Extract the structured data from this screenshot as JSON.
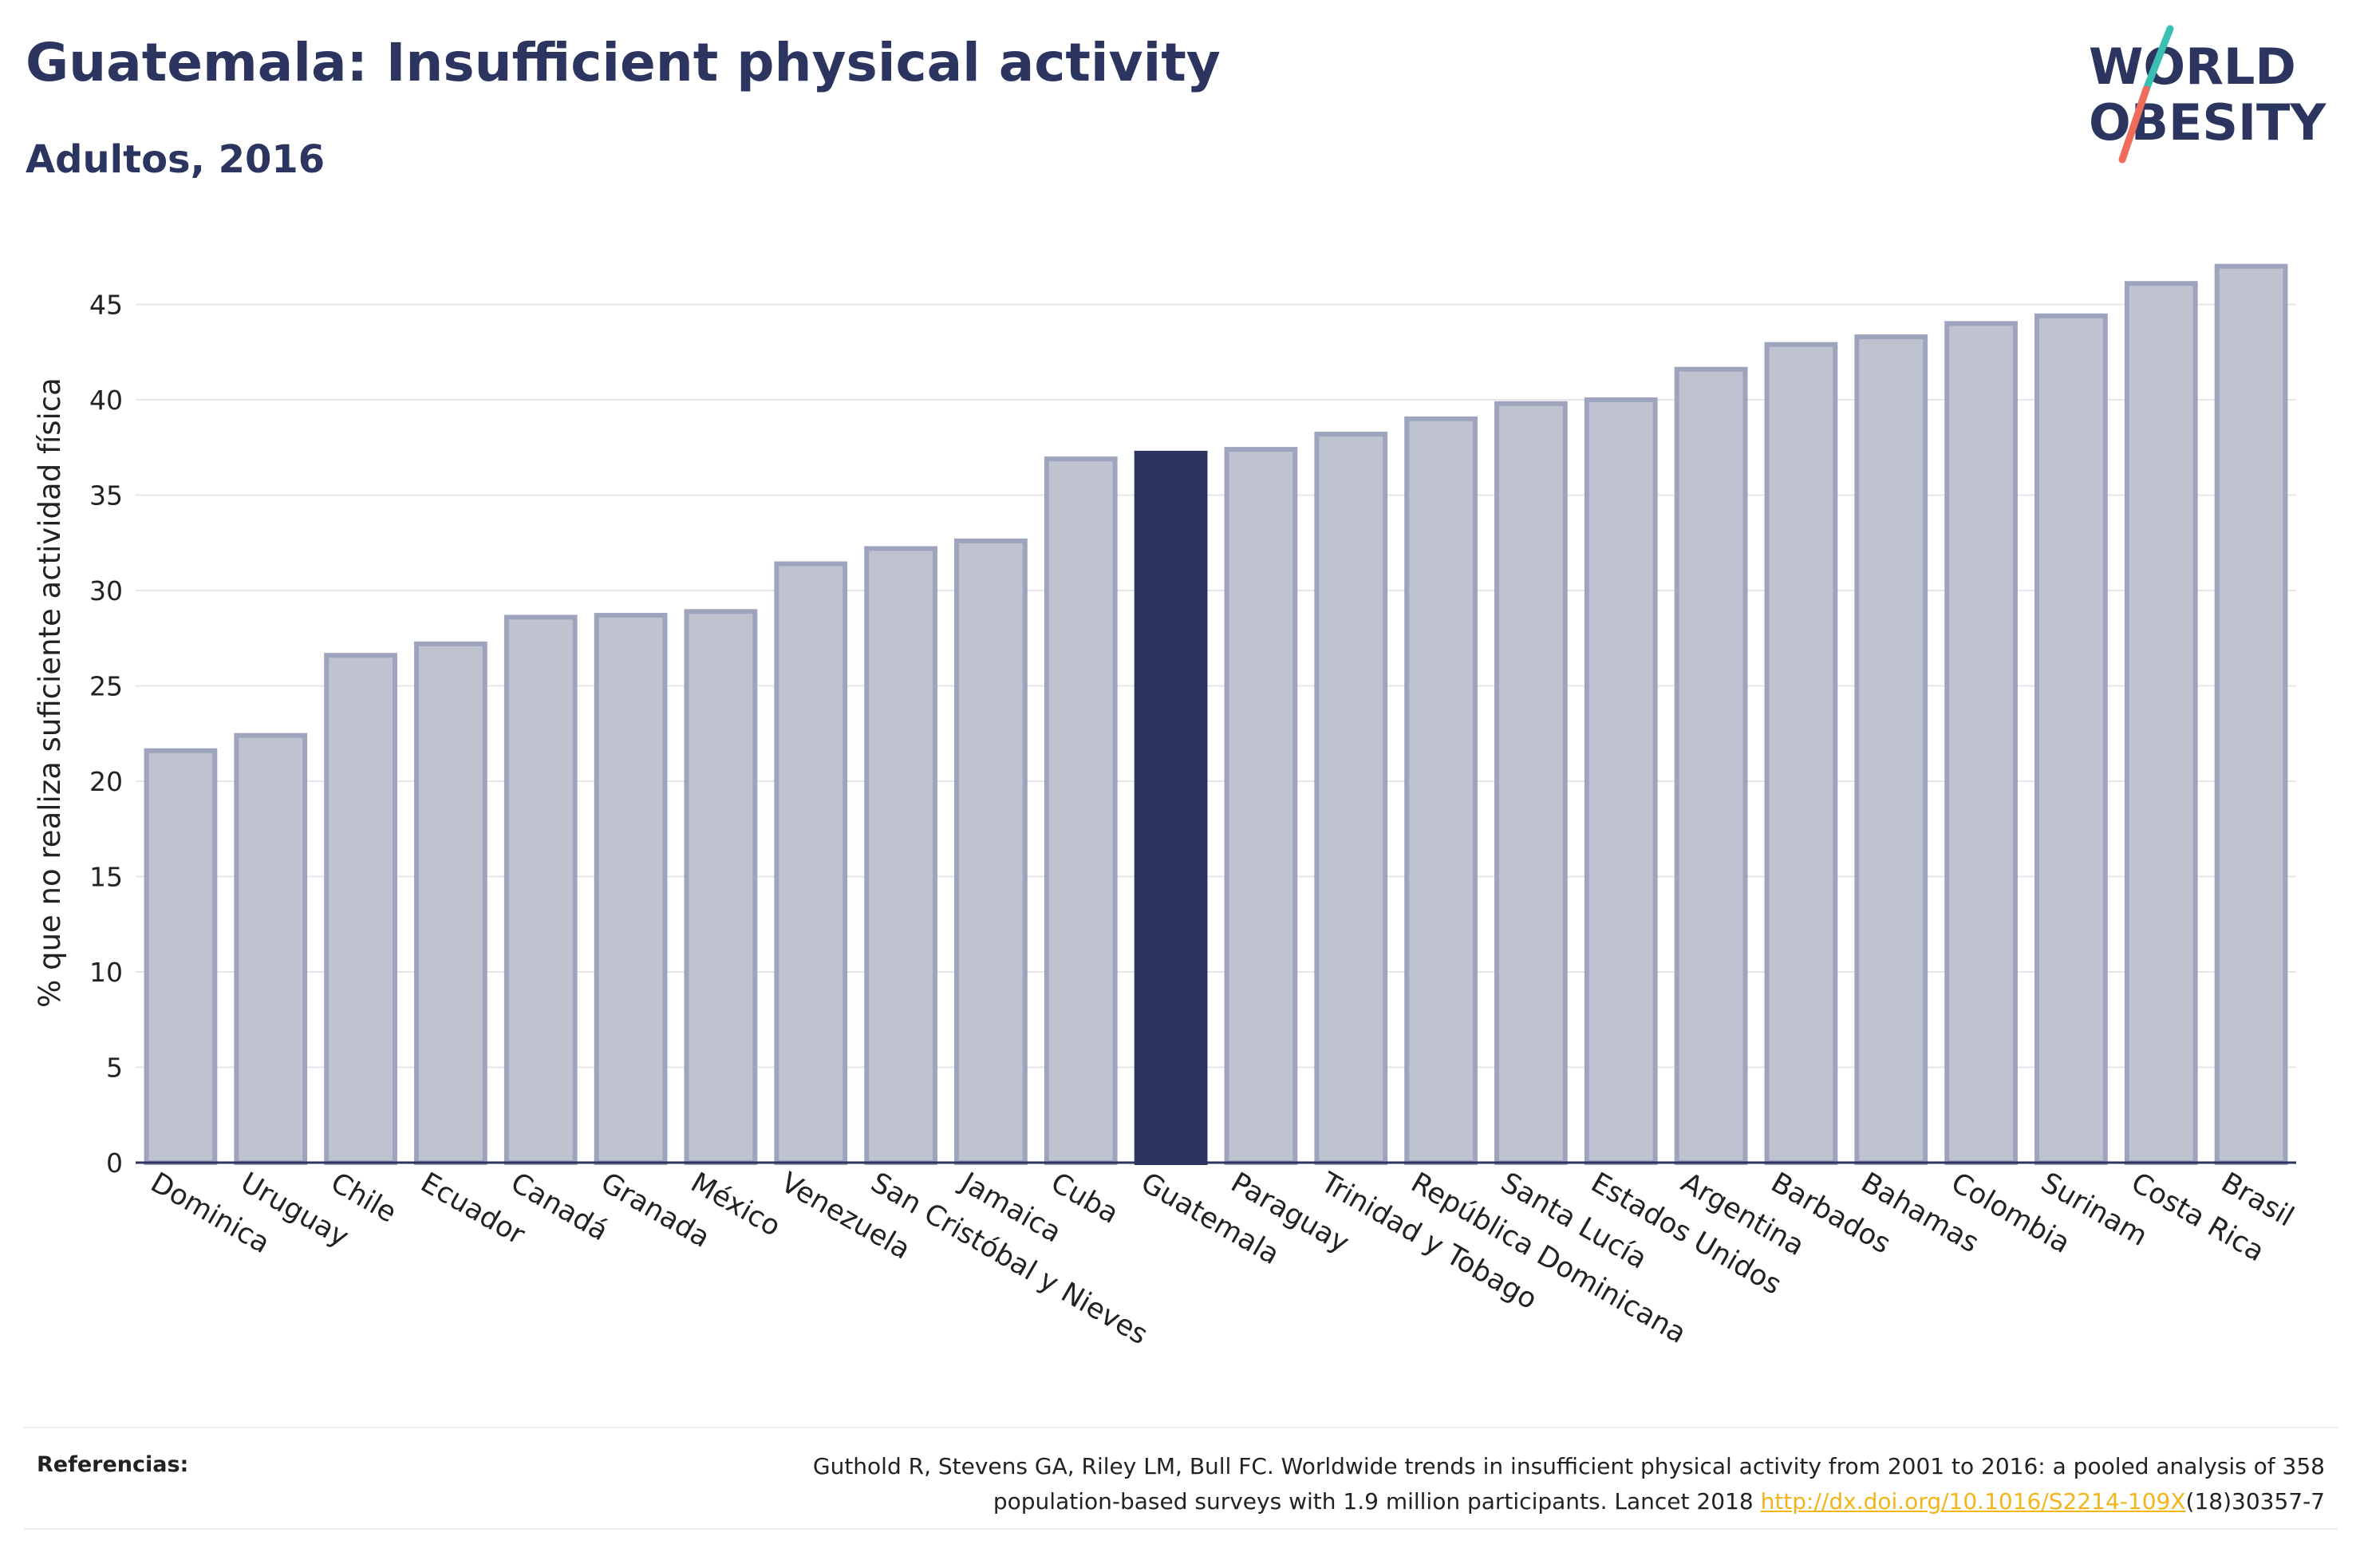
{
  "header": {
    "title": "Guatemala: Insufficient physical activity",
    "subtitle": "Adultos, 2016"
  },
  "logo": {
    "line1": "WORLD",
    "line2": "OBESITY",
    "colors": {
      "text": "#2b3560",
      "slash_teal": "#3bbfb5",
      "slash_coral": "#ef6b5b"
    }
  },
  "chart_data": {
    "type": "bar",
    "title": "Guatemala: Insufficient physical activity",
    "subtitle": "Adultos, 2016",
    "xlabel": "",
    "ylabel": "% que no realiza suficiente actividad física",
    "ylim": [
      0,
      47.5
    ],
    "yticks": [
      0,
      5,
      10,
      15,
      20,
      25,
      30,
      35,
      40,
      45
    ],
    "grid": true,
    "highlight": "Guatemala",
    "colors": {
      "bar": "#bfc3d0",
      "bar_edge": "#9ea4bd",
      "highlight": "#2b3560",
      "grid": "#e6e6ea",
      "axis": "#2b3560"
    },
    "categories": [
      "Dominica",
      "Uruguay",
      "Chile",
      "Ecuador",
      "Canadá",
      "Granada",
      "México",
      "Venezuela",
      "San Cristóbal y Nieves",
      "Jamaica",
      "Cuba",
      "Guatemala",
      "Paraguay",
      "Trinidad y Tobago",
      "República Dominicana",
      "Santa Lucía",
      "Estados Unidos",
      "Argentina",
      "Barbados",
      "Bahamas",
      "Colombia",
      "Surinam",
      "Costa Rica",
      "Brasil"
    ],
    "values": [
      21.6,
      22.4,
      26.6,
      27.2,
      28.6,
      28.7,
      28.9,
      31.4,
      32.2,
      32.6,
      36.9,
      37.2,
      37.4,
      38.2,
      39.0,
      39.8,
      40.0,
      41.6,
      42.9,
      43.3,
      44.0,
      44.4,
      46.1,
      47.0
    ]
  },
  "footer": {
    "label": "Referencias:",
    "ref_line1": "Guthold R, Stevens GA, Riley LM, Bull FC. Worldwide trends in insufficient physical activity from 2001 to 2016: a pooled analysis of 358",
    "ref_line2_pre": "population-based surveys with 1.9 million participants. Lancet 2018 ",
    "ref_link": "http://dx.doi.org/10.1016/S2214-109X",
    "ref_line2_post": "(18)30357-7"
  }
}
